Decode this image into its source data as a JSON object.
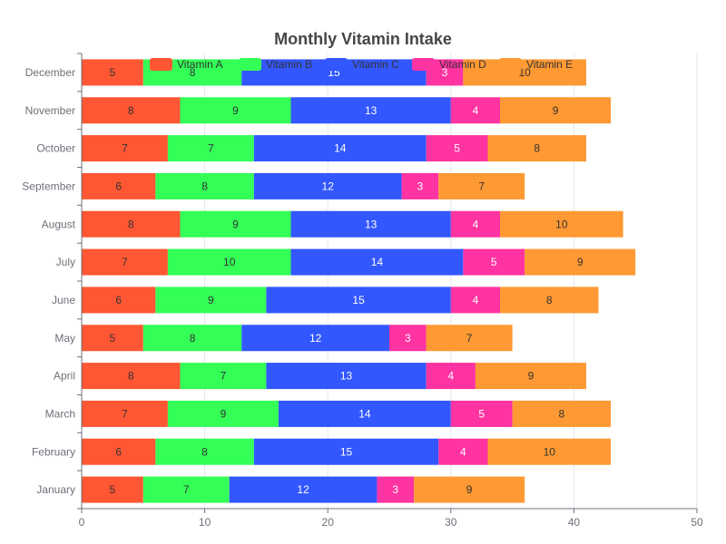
{
  "chart_data": {
    "type": "bar",
    "orientation": "horizontal",
    "stacked": true,
    "title": "Monthly Vitamin Intake",
    "xlabel": "",
    "ylabel": "",
    "xlim": [
      0,
      50
    ],
    "x_ticks": [
      0,
      10,
      20,
      30,
      40,
      50
    ],
    "grid": "vertical",
    "legend_position": "top",
    "categories": [
      "January",
      "February",
      "March",
      "April",
      "May",
      "June",
      "July",
      "August",
      "September",
      "October",
      "November",
      "December"
    ],
    "series": [
      {
        "name": "Vitamin A",
        "color": "#ff5733",
        "values": [
          5,
          6,
          7,
          8,
          5,
          6,
          7,
          8,
          6,
          7,
          8,
          5
        ]
      },
      {
        "name": "Vitamin B",
        "color": "#33ff57",
        "values": [
          7,
          8,
          9,
          7,
          8,
          9,
          10,
          9,
          8,
          7,
          9,
          8
        ]
      },
      {
        "name": "Vitamin C",
        "color": "#3357ff",
        "values": [
          12,
          15,
          14,
          13,
          12,
          15,
          14,
          13,
          12,
          14,
          13,
          15
        ]
      },
      {
        "name": "Vitamin D",
        "color": "#ff33a1",
        "values": [
          3,
          4,
          5,
          4,
          3,
          4,
          5,
          4,
          3,
          5,
          4,
          3
        ]
      },
      {
        "name": "Vitamin E",
        "color": "#ff9933",
        "values": [
          9,
          10,
          8,
          9,
          7,
          8,
          9,
          10,
          7,
          8,
          9,
          10
        ]
      }
    ]
  }
}
